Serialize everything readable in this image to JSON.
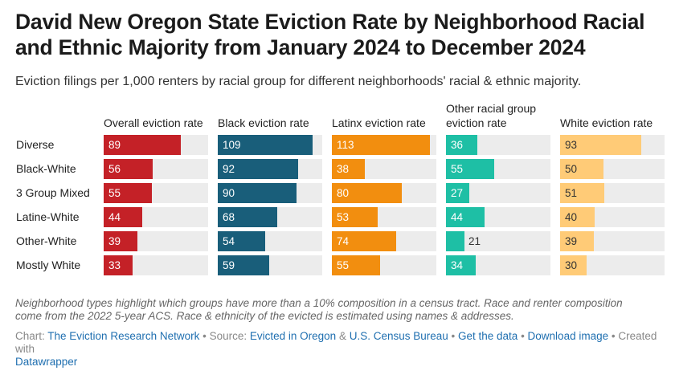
{
  "header": {
    "title": "David New Oregon State Eviction Rate by Neighborhood Racial and Ethnic Majority from January 2024 to December 2024",
    "subtitle": "Eviction filings per 1,000 renters by racial group for different neighborhoods' racial & ethnic majority."
  },
  "chart_data": {
    "type": "bar",
    "orientation": "horizontal",
    "categories": [
      "Diverse",
      "Black-White",
      "3 Group Mixed",
      "Latine-White",
      "Other-White",
      "Mostly White"
    ],
    "series": [
      {
        "name": "Overall eviction rate",
        "color": "#c42127",
        "text_color": "#ffffff",
        "values": [
          89,
          56,
          55,
          44,
          39,
          33
        ]
      },
      {
        "name": "Black eviction rate",
        "color": "#195e7a",
        "text_color": "#ffffff",
        "values": [
          109,
          92,
          90,
          68,
          54,
          59
        ]
      },
      {
        "name": "Latinx eviction rate",
        "color": "#f28e0f",
        "text_color": "#ffffff",
        "values": [
          113,
          38,
          80,
          53,
          74,
          55
        ]
      },
      {
        "name": "Other racial group eviction rate",
        "color": "#1ebfa5",
        "text_color": "#ffffff",
        "values": [
          36,
          55,
          27,
          44,
          21,
          34
        ]
      },
      {
        "name": "White eviction rate",
        "color": "#ffcb77",
        "text_color": "#333333",
        "values": [
          93,
          50,
          51,
          40,
          39,
          30
        ]
      }
    ],
    "xlim": [
      0,
      120
    ],
    "track_color": "#ececec"
  },
  "notes": {
    "line1": "Neighborhood types highlight which groups have more than a 10% composition in a census tract. Race and renter composition",
    "line2": "come from the 2022 5-year ACS. Race & ethnicity of the evicted is estimated using names & addresses."
  },
  "footer": {
    "chart_prefix": "Chart: ",
    "chart_org": "The Eviction Research Network",
    "source_prefix": " • Source: ",
    "source_1": "Evicted in Oregon",
    "amp": " & ",
    "source_2": "U.S. Census Bureau",
    "sep1": " • ",
    "get_data": "Get the data",
    "sep2": " • ",
    "download": "Download image",
    "created": " • Created with",
    "tool": "Datawrapper"
  }
}
